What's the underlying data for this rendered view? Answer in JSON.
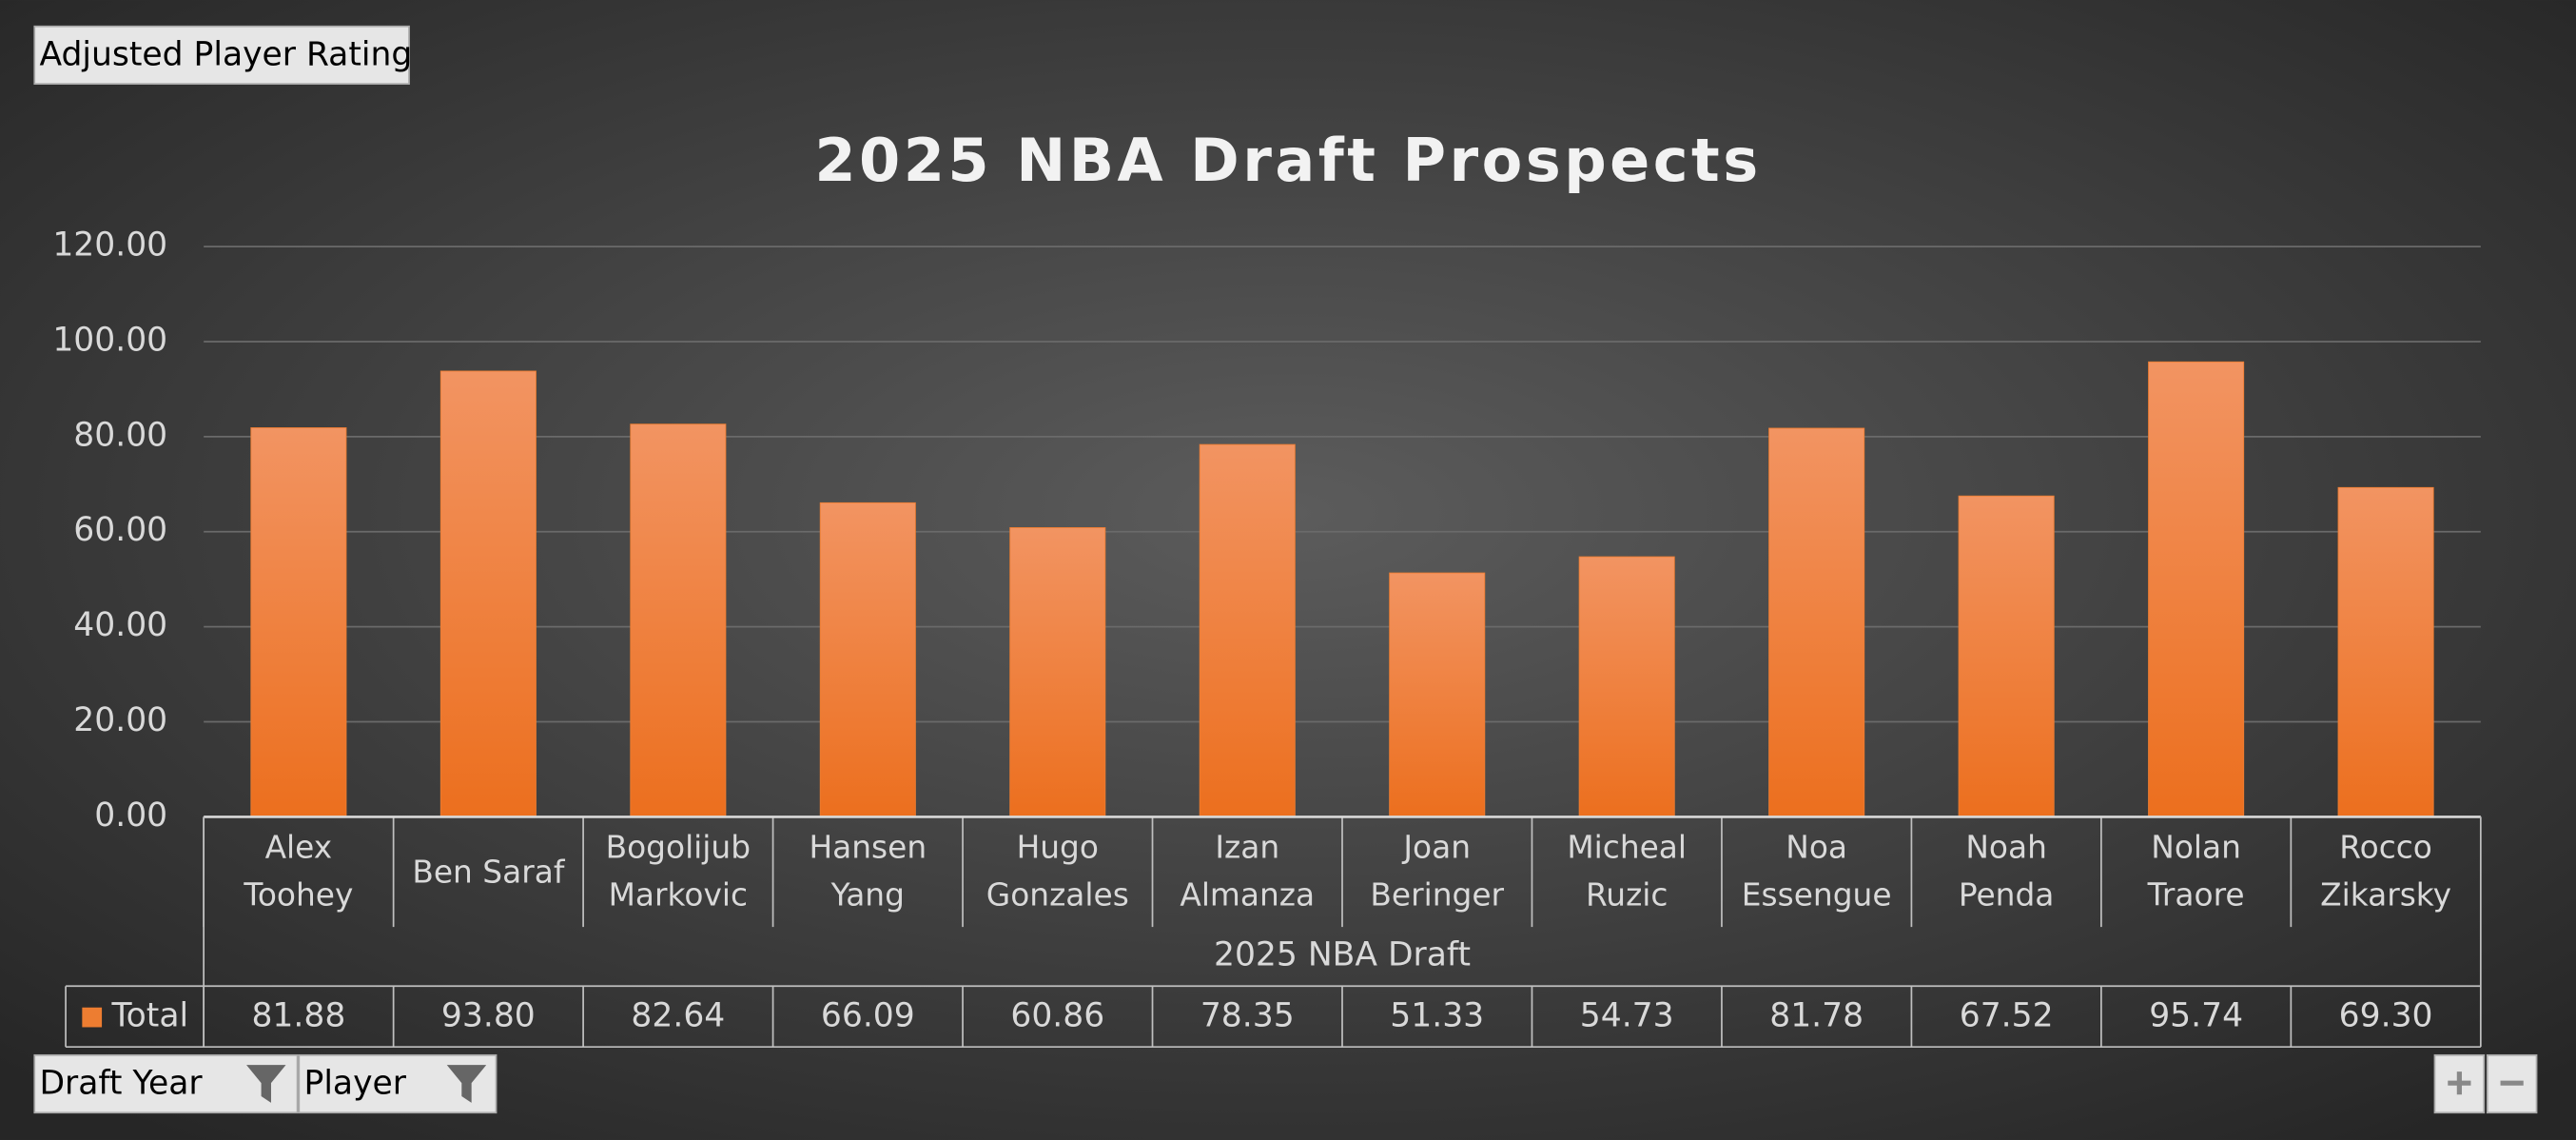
{
  "field_buttons": {
    "value_field": "Adjusted Player Rating",
    "filters": [
      "Draft Year",
      "Player"
    ]
  },
  "chart_data": {
    "type": "bar",
    "title": "2025 NBA Draft Prospects",
    "x_group_label": "2025 NBA Draft",
    "categories": [
      "Alex Toohey",
      "Ben Saraf",
      "Bogolijub Markovic",
      "Hansen Yang",
      "Hugo Gonzales",
      "Izan Almanza",
      "Joan Beringer",
      "Micheal Ruzic",
      "Noa Essengue",
      "Noah Penda",
      "Nolan Traore",
      "Rocco Zikarsky"
    ],
    "series": [
      {
        "name": "Total",
        "color": "#ed7d31",
        "values": [
          81.88,
          93.8,
          82.64,
          66.09,
          60.86,
          78.35,
          51.33,
          54.73,
          81.78,
          67.52,
          95.74,
          69.3
        ],
        "value_labels": [
          "81.88",
          "93.80",
          "82.64",
          "66.09",
          "60.86",
          "78.35",
          "51.33",
          "54.73",
          "81.78",
          "67.52",
          "95.74",
          "69.30"
        ]
      }
    ],
    "ylim": [
      0,
      120
    ],
    "yticks": [
      {
        "value": 0,
        "label": "0.00"
      },
      {
        "value": 20,
        "label": "20.00"
      },
      {
        "value": 40,
        "label": "40.00"
      },
      {
        "value": 60,
        "label": "60.00"
      },
      {
        "value": 80,
        "label": "80.00"
      },
      {
        "value": 100,
        "label": "100.00"
      },
      {
        "value": 120,
        "label": "120.00"
      }
    ],
    "grid": true
  }
}
